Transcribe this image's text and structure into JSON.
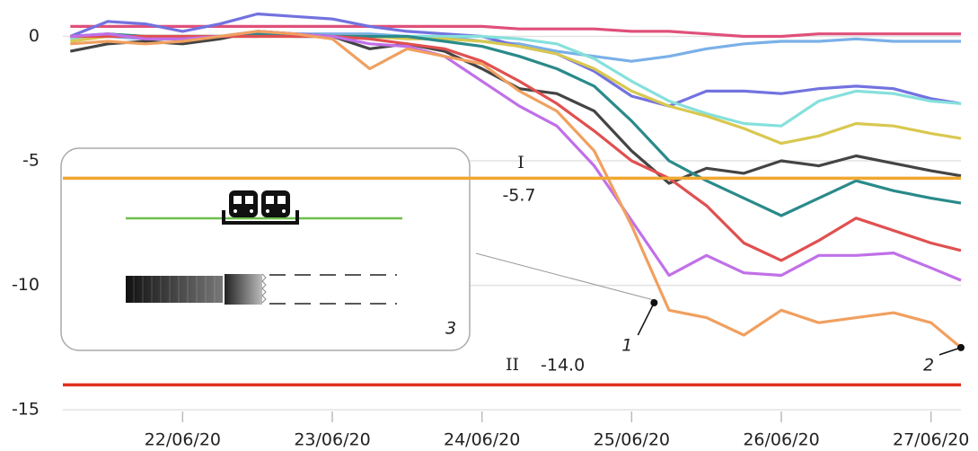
{
  "chart_data": {
    "type": "line",
    "x": [
      21.25,
      21.5,
      21.75,
      22,
      22.25,
      22.5,
      22.75,
      23,
      23.25,
      23.5,
      23.75,
      24,
      24.25,
      24.5,
      24.75,
      25,
      25.25,
      25.5,
      25.75,
      26,
      26.25,
      26.5,
      26.75,
      27,
      27.2
    ],
    "xlim": [
      21.2,
      27.2
    ],
    "xticks": [
      {
        "value": 22,
        "label": "22/06/20"
      },
      {
        "value": 23,
        "label": "23/06/20"
      },
      {
        "value": 24,
        "label": "24/06/20"
      },
      {
        "value": 25,
        "label": "25/06/20"
      },
      {
        "value": 26,
        "label": "26/06/20"
      },
      {
        "value": 27,
        "label": "27/06/20"
      }
    ],
    "ylim": [
      -15.5,
      1.1
    ],
    "yticks": [
      0,
      -5,
      -10,
      -15
    ],
    "grid": true,
    "series": [
      {
        "color": "#e0507a",
        "values": [
          0.4,
          0.4,
          0.4,
          0.4,
          0.4,
          0.4,
          0.4,
          0.4,
          0.4,
          0.4,
          0.4,
          0.4,
          0.3,
          0.3,
          0.3,
          0.2,
          0.2,
          0.1,
          0,
          0,
          0.1,
          0.1,
          0.1,
          0.1,
          0.1
        ]
      },
      {
        "color": "#7ab0e8",
        "values": [
          0,
          0,
          -0.1,
          -0.1,
          0,
          0,
          0.1,
          0.1,
          0.1,
          0,
          0,
          -0.2,
          -0.3,
          -0.6,
          -0.8,
          -1.0,
          -0.8,
          -0.5,
          -0.3,
          -0.2,
          -0.2,
          -0.1,
          -0.2,
          -0.2,
          -0.2
        ]
      },
      {
        "color": "#7272e0",
        "values": [
          0,
          0.6,
          0.5,
          0.2,
          0.5,
          0.9,
          0.8,
          0.7,
          0.4,
          0.2,
          0.1,
          0,
          -0.4,
          -0.7,
          -1.4,
          -2.4,
          -2.8,
          -2.2,
          -2.2,
          -2.3,
          -2.1,
          -2.0,
          -2.1,
          -2.5,
          -2.7
        ]
      },
      {
        "color": "#86e0dc",
        "values": [
          -0.1,
          0,
          0,
          0,
          0,
          0.1,
          0,
          0,
          0,
          0,
          0,
          0,
          -0.1,
          -0.3,
          -0.9,
          -1.8,
          -2.6,
          -3.1,
          -3.5,
          -3.6,
          -2.6,
          -2.2,
          -2.3,
          -2.6,
          -2.7
        ]
      },
      {
        "color": "#d8c850",
        "values": [
          -0.2,
          0,
          0,
          0,
          0,
          0,
          0,
          0,
          0,
          -0.1,
          -0.1,
          -0.2,
          -0.4,
          -0.7,
          -1.3,
          -2.2,
          -2.8,
          -3.2,
          -3.7,
          -4.3,
          -4.0,
          -3.5,
          -3.6,
          -3.9,
          -4.1
        ]
      },
      {
        "color": "#444444",
        "values": [
          -0.6,
          -0.3,
          -0.2,
          -0.3,
          -0.1,
          0.2,
          0.1,
          0,
          -0.5,
          -0.3,
          -0.6,
          -1.3,
          -2.1,
          -2.3,
          -3.0,
          -4.6,
          -5.9,
          -5.3,
          -5.5,
          -5.0,
          -5.2,
          -4.8,
          -5.1,
          -5.4,
          -5.6
        ]
      },
      {
        "color": "#2a8a8a",
        "values": [
          0,
          0.1,
          0,
          0,
          0,
          0.1,
          0,
          0,
          0,
          0,
          -0.2,
          -0.4,
          -0.8,
          -1.3,
          -2.0,
          -3.4,
          -5.0,
          -5.8,
          -6.5,
          -7.2,
          -6.5,
          -5.8,
          -6.2,
          -6.5,
          -6.7
        ]
      },
      {
        "color": "#e05050",
        "values": [
          0,
          0,
          0,
          0,
          0,
          0,
          0,
          0,
          -0.1,
          -0.3,
          -0.5,
          -1.0,
          -1.8,
          -2.7,
          -3.8,
          -5.0,
          -5.7,
          -6.8,
          -8.3,
          -9.0,
          -8.2,
          -7.3,
          -7.8,
          -8.3,
          -8.6
        ]
      },
      {
        "color": "#c070e8",
        "values": [
          0,
          0.1,
          -0.1,
          -0.1,
          0,
          0.2,
          0.1,
          0,
          -0.3,
          -0.4,
          -0.8,
          -1.8,
          -2.8,
          -3.6,
          -5.2,
          -7.4,
          -9.6,
          -8.8,
          -9.5,
          -9.6,
          -8.8,
          -8.8,
          -8.7,
          -9.3,
          -9.8
        ]
      },
      {
        "color": "#f0a060",
        "values": [
          -0.3,
          -0.2,
          -0.3,
          -0.2,
          0,
          0.2,
          0.1,
          -0.1,
          -1.3,
          -0.5,
          -0.8,
          -1.1,
          -2.2,
          -3.0,
          -4.6,
          -7.6,
          -11.0,
          -11.3,
          -12.0,
          -11.0,
          -11.5,
          -11.3,
          -11.1,
          -11.5,
          -12.5
        ]
      }
    ],
    "thresholds": [
      {
        "name": "I",
        "value": -5.7,
        "value_label": "-5.7",
        "color": "#f0a830"
      },
      {
        "name": "II",
        "value": -14,
        "value_label": "-14.0",
        "color": "#e03020"
      }
    ],
    "markers": [
      {
        "label": "1",
        "x": 25.15,
        "y": -10.7
      },
      {
        "label": "2",
        "x": 27.2,
        "y": -12.5
      }
    ],
    "inset_label": "3"
  }
}
